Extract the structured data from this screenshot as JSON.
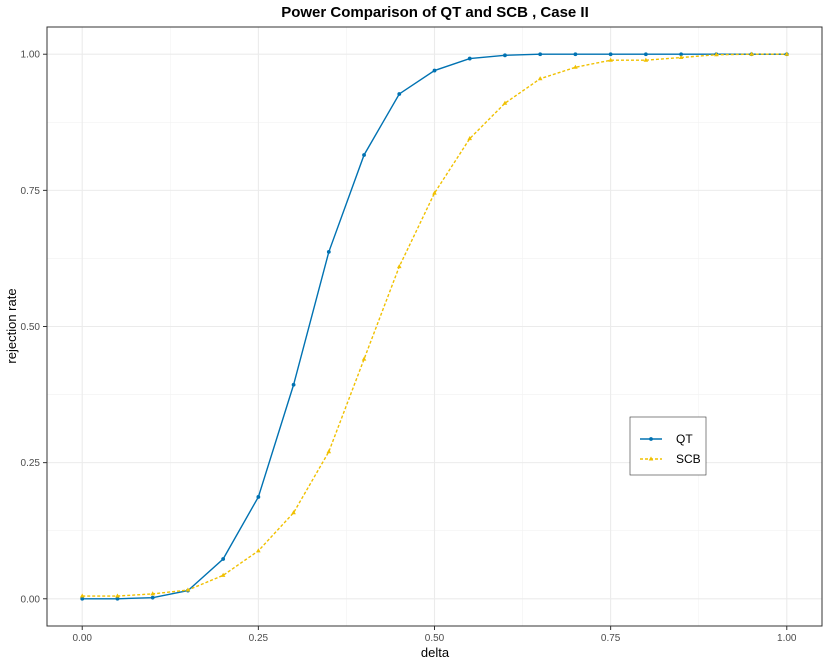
{
  "chart_data": {
    "type": "line",
    "title": "Power Comparison of QT and SCB , Case II",
    "x_label": "delta",
    "y_label": "rejection rate",
    "x": [
      0,
      0.05,
      0.1,
      0.15,
      0.2,
      0.25,
      0.3,
      0.35,
      0.4,
      0.45,
      0.5,
      0.55,
      0.6,
      0.65,
      0.7,
      0.75,
      0.8,
      0.85,
      0.9,
      0.95,
      1
    ],
    "series": [
      {
        "name": "QT",
        "color": "#0072b2",
        "line_style": "solid",
        "marker": "circle",
        "values": [
          0,
          0,
          0.002,
          0.015,
          0.073,
          0.187,
          0.393,
          0.637,
          0.815,
          0.927,
          0.97,
          0.992,
          0.998,
          1,
          1,
          1,
          1,
          1,
          1,
          1,
          1
        ]
      },
      {
        "name": "SCB",
        "color": "#f0c000",
        "line_style": "dashed",
        "marker": "triangle",
        "values": [
          0.005,
          0.005,
          0.009,
          0.016,
          0.043,
          0.088,
          0.158,
          0.27,
          0.44,
          0.61,
          0.745,
          0.845,
          0.91,
          0.955,
          0.976,
          0.989,
          0.989,
          0.994,
          0.999,
          1,
          1
        ]
      }
    ],
    "xlim": [
      -0.05,
      1.05
    ],
    "ylim": [
      -0.05,
      1.05
    ],
    "xticks": [
      {
        "value": 0,
        "label": "0.00"
      },
      {
        "value": 0.25,
        "label": "0.25"
      },
      {
        "value": 0.5,
        "label": "0.50"
      },
      {
        "value": 0.75,
        "label": "0.75"
      },
      {
        "value": 1,
        "label": "1.00"
      }
    ],
    "yticks": [
      {
        "value": 0,
        "label": "0.00"
      },
      {
        "value": 0.25,
        "label": "0.25"
      },
      {
        "value": 0.5,
        "label": "0.50"
      },
      {
        "value": 0.75,
        "label": "0.75"
      },
      {
        "value": 1,
        "label": "1.00"
      }
    ],
    "grid": true
  }
}
